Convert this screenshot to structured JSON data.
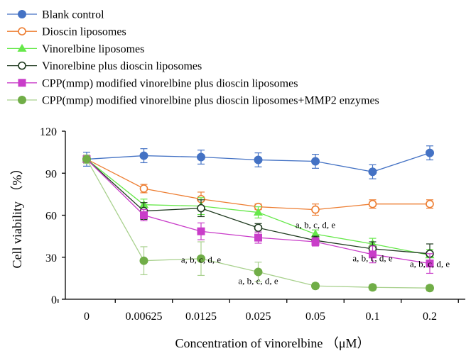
{
  "chart_data": {
    "type": "line",
    "xlabel": "Concentration of vinorelbine （μM）",
    "ylabel": "Cell viability （%）",
    "ylim": [
      0,
      120
    ],
    "yticks": [
      0,
      30,
      60,
      90,
      120
    ],
    "categories": [
      "0",
      "0.00625",
      "0.0125",
      "0.025",
      "0.05",
      "0.1",
      "0.2"
    ],
    "legend_position": "top-left",
    "grid": false,
    "series": [
      {
        "name": "Blank control",
        "color": "#4472C4",
        "marker": "circle-filled",
        "values": [
          100,
          102.5,
          101.5,
          99.5,
          98.5,
          91,
          104.5
        ],
        "errors": [
          5,
          5,
          5,
          5,
          5,
          5,
          5
        ]
      },
      {
        "name": "Dioscin liposomes",
        "color": "#ED7D31",
        "marker": "circle-open",
        "values": [
          100,
          79,
          71.5,
          66,
          64,
          68,
          68
        ],
        "errors": [
          3,
          3,
          5,
          2,
          4,
          3,
          3
        ]
      },
      {
        "name": "Vinorelbine liposomes",
        "color": "#66E84A",
        "marker": "triangle-filled",
        "values": [
          100,
          67.5,
          66.5,
          62,
          46.5,
          39.5,
          31.5
        ],
        "errors": [
          3,
          4,
          6,
          4,
          3,
          4,
          4
        ]
      },
      {
        "name": "Vinorelbine plus dioscin liposomes",
        "color": "#1F3A1F",
        "marker": "circle-open",
        "values": [
          100,
          63,
          65,
          51,
          42,
          36,
          32.5
        ],
        "errors": [
          3,
          6,
          6,
          3,
          3,
          5,
          7
        ]
      },
      {
        "name": "CPP(mmp) modified vinorelbine plus dioscin liposomes",
        "color": "#C93DC9",
        "marker": "square-filled",
        "values": [
          100,
          60,
          48.5,
          44,
          41,
          32,
          25.5
        ],
        "errors": [
          3,
          4,
          6,
          4,
          3,
          6,
          7
        ]
      },
      {
        "name": "CPP(mmp) modified vinorelbine plus dioscin liposomes+MMP2 enzymes",
        "color": "#70AD47",
        "line_color": "#A9D18E",
        "marker": "circle-filled",
        "values": [
          100,
          27.5,
          29,
          19.5,
          9.5,
          8.5,
          8
        ],
        "errors": [
          3,
          10,
          12,
          7,
          2,
          2,
          2
        ]
      }
    ],
    "annotations": [
      {
        "category": "0.0125",
        "y": 26,
        "text": "a, b, c, d, e"
      },
      {
        "category": "0.025",
        "y": 11,
        "text": "a, b, c, d, e"
      },
      {
        "category": "0.05",
        "y": 51,
        "text": "a, b, c, d, e"
      },
      {
        "category": "0.1",
        "y": 27,
        "text": "a, b, c, d, e"
      },
      {
        "category": "0.2",
        "y": 23,
        "text": "a, b, c, d, e"
      }
    ]
  }
}
